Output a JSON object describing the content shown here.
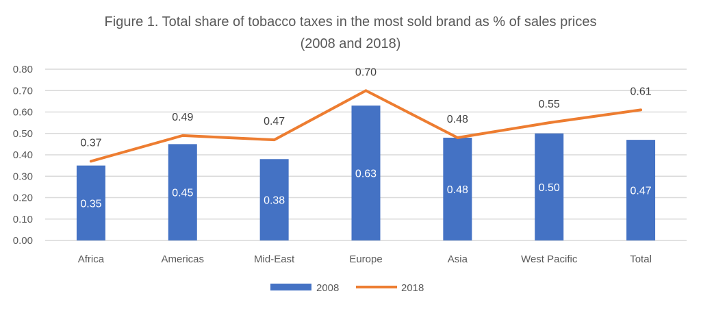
{
  "chart_data": {
    "type": "bar",
    "title_line1": "Figure 1.  Total share of tobacco taxes in the most sold brand as % of sales prices",
    "title_line2": "(2008 and 2018)",
    "categories": [
      "Africa",
      "Americas",
      "Mid-East",
      "Europe",
      "Asia",
      "West Pacific",
      "Total"
    ],
    "series": [
      {
        "name": "2008",
        "type": "bar",
        "color": "#4472C4",
        "values": [
          0.35,
          0.45,
          0.38,
          0.63,
          0.48,
          0.5,
          0.47
        ]
      },
      {
        "name": "2018",
        "type": "line",
        "color": "#ED7D31",
        "values": [
          0.37,
          0.49,
          0.47,
          0.7,
          0.48,
          0.55,
          0.61
        ]
      }
    ],
    "yticks": [
      "0.00",
      "0.10",
      "0.20",
      "0.30",
      "0.40",
      "0.50",
      "0.60",
      "0.70",
      "0.80"
    ],
    "ylim": [
      0,
      0.8
    ],
    "grid": true,
    "legend": "bottom"
  }
}
